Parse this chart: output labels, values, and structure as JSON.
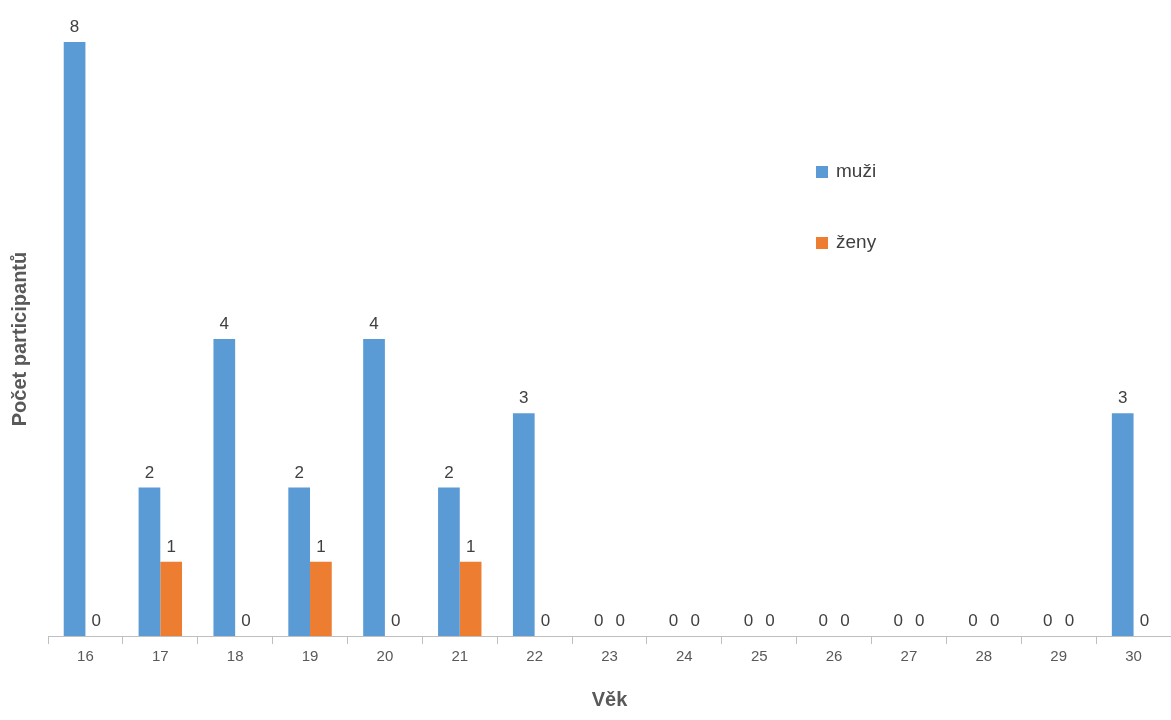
{
  "chart_data": {
    "type": "bar",
    "xlabel": "Věk",
    "ylabel": "Počet participantů",
    "categories": [
      "16",
      "17",
      "18",
      "19",
      "20",
      "21",
      "22",
      "23",
      "24",
      "25",
      "26",
      "27",
      "28",
      "29",
      "30"
    ],
    "series": [
      {
        "name": "muži",
        "color": "#5b9bd5",
        "values": [
          8,
          2,
          4,
          2,
          4,
          2,
          3,
          0,
          0,
          0,
          0,
          0,
          0,
          0,
          3
        ]
      },
      {
        "name": "ženy",
        "color": "#ed7d31",
        "values": [
          0,
          1,
          0,
          1,
          0,
          1,
          0,
          0,
          0,
          0,
          0,
          0,
          0,
          0,
          0
        ]
      }
    ],
    "data_labels": true,
    "grid": false,
    "legend": "top right"
  }
}
